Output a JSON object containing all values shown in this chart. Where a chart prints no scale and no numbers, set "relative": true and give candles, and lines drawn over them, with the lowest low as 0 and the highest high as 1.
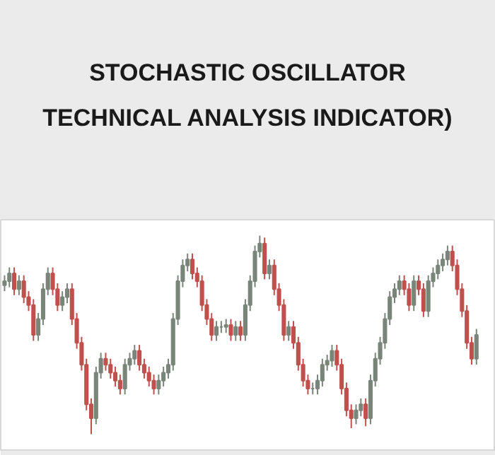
{
  "chart_data": {
    "type": "candlestick",
    "title": "STOCHASTIC OSCILLATOR\nTECHNICAL ANALYSIS INDICATOR)",
    "relative": true,
    "grid": false,
    "categories": [
      null,
      null,
      null,
      null,
      null,
      null,
      null,
      null,
      null,
      null,
      null,
      null,
      null,
      null,
      null,
      null,
      null,
      null,
      null,
      null,
      null,
      null,
      null,
      null,
      null,
      null,
      null,
      null,
      null,
      null,
      null,
      null,
      null,
      null,
      null,
      null,
      null,
      null,
      null,
      null,
      null,
      null,
      null,
      null,
      null,
      null,
      null,
      null,
      null,
      null,
      null,
      null,
      null,
      null,
      null,
      null,
      null,
      null,
      null,
      null,
      null,
      null,
      null,
      null,
      null,
      null,
      null,
      null,
      null,
      null,
      null,
      null,
      null,
      null,
      null,
      null,
      null,
      null,
      null,
      null,
      null,
      null,
      null,
      null,
      null,
      null,
      null,
      null,
      null,
      null,
      null,
      null,
      null,
      null,
      null,
      null,
      null,
      null,
      null
    ],
    "ohlc": [
      [
        0.75,
        0.8,
        0.72,
        0.77
      ],
      [
        0.77,
        0.84,
        0.74,
        0.81
      ],
      [
        0.81,
        0.84,
        0.7,
        0.73
      ],
      [
        0.73,
        0.8,
        0.7,
        0.77
      ],
      [
        0.77,
        0.8,
        0.66,
        0.69
      ],
      [
        0.69,
        0.72,
        0.62,
        0.65
      ],
      [
        0.65,
        0.68,
        0.47,
        0.5
      ],
      [
        0.5,
        0.61,
        0.47,
        0.58
      ],
      [
        0.58,
        0.76,
        0.55,
        0.73
      ],
      [
        0.73,
        0.84,
        0.7,
        0.81
      ],
      [
        0.81,
        0.84,
        0.7,
        0.73
      ],
      [
        0.73,
        0.76,
        0.62,
        0.65
      ],
      [
        0.65,
        0.72,
        0.62,
        0.69
      ],
      [
        0.69,
        0.76,
        0.66,
        0.73
      ],
      [
        0.73,
        0.76,
        0.55,
        0.58
      ],
      [
        0.58,
        0.61,
        0.43,
        0.46
      ],
      [
        0.46,
        0.49,
        0.32,
        0.35
      ],
      [
        0.35,
        0.38,
        0.12,
        0.15
      ],
      [
        0.15,
        0.18,
        0.0,
        0.08
      ],
      [
        0.08,
        0.34,
        0.05,
        0.31
      ],
      [
        0.31,
        0.41,
        0.28,
        0.38
      ],
      [
        0.38,
        0.41,
        0.32,
        0.35
      ],
      [
        0.35,
        0.38,
        0.28,
        0.31
      ],
      [
        0.31,
        0.34,
        0.24,
        0.27
      ],
      [
        0.27,
        0.3,
        0.2,
        0.23
      ],
      [
        0.23,
        0.38,
        0.2,
        0.35
      ],
      [
        0.35,
        0.41,
        0.32,
        0.38
      ],
      [
        0.38,
        0.45,
        0.35,
        0.42
      ],
      [
        0.42,
        0.45,
        0.32,
        0.35
      ],
      [
        0.35,
        0.38,
        0.28,
        0.31
      ],
      [
        0.31,
        0.34,
        0.24,
        0.27
      ],
      [
        0.27,
        0.3,
        0.2,
        0.23
      ],
      [
        0.23,
        0.3,
        0.2,
        0.27
      ],
      [
        0.27,
        0.34,
        0.24,
        0.31
      ],
      [
        0.31,
        0.38,
        0.28,
        0.35
      ],
      [
        0.35,
        0.61,
        0.32,
        0.58
      ],
      [
        0.58,
        0.8,
        0.55,
        0.77
      ],
      [
        0.77,
        0.88,
        0.74,
        0.85
      ],
      [
        0.85,
        0.91,
        0.82,
        0.88
      ],
      [
        0.88,
        0.91,
        0.78,
        0.81
      ],
      [
        0.81,
        0.84,
        0.74,
        0.77
      ],
      [
        0.77,
        0.8,
        0.62,
        0.65
      ],
      [
        0.65,
        0.68,
        0.55,
        0.58
      ],
      [
        0.58,
        0.61,
        0.47,
        0.5
      ],
      [
        0.5,
        0.57,
        0.47,
        0.54
      ],
      [
        0.54,
        0.57,
        0.51,
        0.54
      ],
      [
        0.54,
        0.58,
        0.51,
        0.55
      ],
      [
        0.55,
        0.58,
        0.47,
        0.5
      ],
      [
        0.5,
        0.57,
        0.47,
        0.54
      ],
      [
        0.54,
        0.57,
        0.47,
        0.5
      ],
      [
        0.5,
        0.68,
        0.47,
        0.65
      ],
      [
        0.65,
        0.8,
        0.62,
        0.77
      ],
      [
        0.77,
        0.95,
        0.74,
        0.92
      ],
      [
        0.92,
        1.0,
        0.89,
        0.96
      ],
      [
        0.96,
        0.99,
        0.78,
        0.81
      ],
      [
        0.81,
        0.88,
        0.78,
        0.85
      ],
      [
        0.85,
        0.88,
        0.7,
        0.73
      ],
      [
        0.73,
        0.76,
        0.62,
        0.65
      ],
      [
        0.65,
        0.68,
        0.47,
        0.5
      ],
      [
        0.5,
        0.57,
        0.47,
        0.54
      ],
      [
        0.54,
        0.57,
        0.43,
        0.46
      ],
      [
        0.46,
        0.49,
        0.32,
        0.35
      ],
      [
        0.35,
        0.38,
        0.24,
        0.27
      ],
      [
        0.27,
        0.3,
        0.2,
        0.23
      ],
      [
        0.23,
        0.26,
        0.2,
        0.23
      ],
      [
        0.23,
        0.3,
        0.2,
        0.27
      ],
      [
        0.27,
        0.38,
        0.24,
        0.35
      ],
      [
        0.35,
        0.4,
        0.32,
        0.37
      ],
      [
        0.37,
        0.45,
        0.34,
        0.42
      ],
      [
        0.42,
        0.45,
        0.32,
        0.35
      ],
      [
        0.35,
        0.38,
        0.2,
        0.23
      ],
      [
        0.23,
        0.26,
        0.09,
        0.12
      ],
      [
        0.12,
        0.15,
        0.03,
        0.08
      ],
      [
        0.08,
        0.15,
        0.05,
        0.12
      ],
      [
        0.12,
        0.18,
        0.09,
        0.15
      ],
      [
        0.15,
        0.18,
        0.04,
        0.08
      ],
      [
        0.08,
        0.3,
        0.05,
        0.27
      ],
      [
        0.27,
        0.41,
        0.24,
        0.38
      ],
      [
        0.38,
        0.49,
        0.35,
        0.46
      ],
      [
        0.46,
        0.61,
        0.43,
        0.58
      ],
      [
        0.58,
        0.72,
        0.55,
        0.69
      ],
      [
        0.69,
        0.76,
        0.66,
        0.73
      ],
      [
        0.73,
        0.8,
        0.7,
        0.77
      ],
      [
        0.77,
        0.8,
        0.7,
        0.73
      ],
      [
        0.73,
        0.76,
        0.62,
        0.65
      ],
      [
        0.65,
        0.8,
        0.62,
        0.77
      ],
      [
        0.77,
        0.8,
        0.7,
        0.73
      ],
      [
        0.73,
        0.76,
        0.59,
        0.62
      ],
      [
        0.62,
        0.8,
        0.59,
        0.77
      ],
      [
        0.77,
        0.84,
        0.74,
        0.81
      ],
      [
        0.81,
        0.88,
        0.78,
        0.85
      ],
      [
        0.85,
        0.91,
        0.82,
        0.88
      ],
      [
        0.88,
        0.95,
        0.85,
        0.92
      ],
      [
        0.92,
        0.95,
        0.82,
        0.85
      ],
      [
        0.85,
        0.88,
        0.7,
        0.73
      ],
      [
        0.73,
        0.76,
        0.59,
        0.62
      ],
      [
        0.62,
        0.65,
        0.43,
        0.46
      ],
      [
        0.46,
        0.49,
        0.35,
        0.38
      ],
      [
        0.38,
        0.53,
        0.35,
        0.5
      ]
    ],
    "colors": [
      "#7a857a",
      "#7a857a",
      "#c0504d",
      "#7a857a",
      "#c0504d",
      "#c0504d",
      "#c0504d",
      "#7a857a",
      "#7a857a",
      "#7a857a",
      "#c0504d",
      "#c0504d",
      "#7a857a",
      "#7a857a",
      "#c0504d",
      "#c0504d",
      "#c0504d",
      "#c0504d",
      "#c0504d",
      "#7a857a",
      "#7a857a",
      "#c0504d",
      "#c0504d",
      "#c0504d",
      "#c0504d",
      "#7a857a",
      "#7a857a",
      "#7a857a",
      "#c0504d",
      "#c0504d",
      "#c0504d",
      "#c0504d",
      "#7a857a",
      "#7a857a",
      "#7a857a",
      "#7a857a",
      "#7a857a",
      "#7a857a",
      "#7a857a",
      "#c0504d",
      "#c0504d",
      "#c0504d",
      "#c0504d",
      "#c0504d",
      "#7a857a",
      "#7a857a",
      "#7a857a",
      "#c0504d",
      "#7a857a",
      "#c0504d",
      "#7a857a",
      "#7a857a",
      "#7a857a",
      "#7a857a",
      "#c0504d",
      "#7a857a",
      "#c0504d",
      "#c0504d",
      "#c0504d",
      "#7a857a",
      "#c0504d",
      "#c0504d",
      "#c0504d",
      "#c0504d",
      "#7a857a",
      "#7a857a",
      "#7a857a",
      "#7a857a",
      "#7a857a",
      "#c0504d",
      "#c0504d",
      "#c0504d",
      "#c0504d",
      "#7a857a",
      "#7a857a",
      "#c0504d",
      "#7a857a",
      "#7a857a",
      "#7a857a",
      "#7a857a",
      "#7a857a",
      "#7a857a",
      "#7a857a",
      "#c0504d",
      "#c0504d",
      "#7a857a",
      "#c0504d",
      "#c0504d",
      "#7a857a",
      "#7a857a",
      "#7a857a",
      "#7a857a",
      "#7a857a",
      "#c0504d",
      "#c0504d",
      "#c0504d",
      "#c0504d",
      "#c0504d",
      "#7a857a"
    ]
  }
}
